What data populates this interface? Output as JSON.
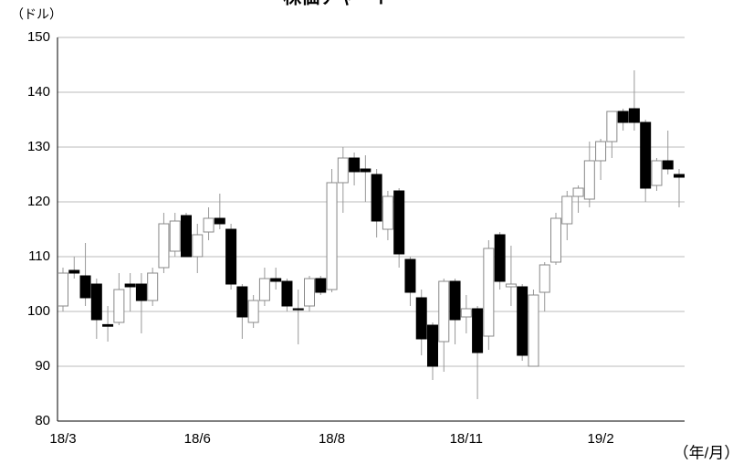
{
  "chart_data": {
    "type": "candlestick",
    "title": "株価チャート",
    "y_label": "（ドル）",
    "x_label": "（年/月）",
    "categories": [
      "18/3",
      null,
      null,
      null,
      null,
      null,
      null,
      null,
      null,
      null,
      null,
      null,
      "18/6",
      null,
      null,
      null,
      null,
      null,
      null,
      null,
      null,
      null,
      null,
      null,
      "18/8",
      null,
      null,
      null,
      null,
      null,
      null,
      null,
      null,
      null,
      null,
      null,
      "18/11",
      null,
      null,
      null,
      null,
      null,
      null,
      null,
      null,
      null,
      null,
      null,
      "19/2",
      null,
      null,
      null,
      null,
      null,
      null,
      null
    ],
    "open": [
      101,
      107.5,
      106.5,
      105,
      97.6,
      98,
      105,
      105,
      102,
      108,
      111,
      117.5,
      110,
      114.5,
      117,
      115,
      104.5,
      98,
      102,
      106,
      105.5,
      100.5,
      101,
      106,
      104,
      123.5,
      128,
      126,
      125,
      115,
      122,
      109.5,
      102.5,
      97.5,
      94.5,
      105.5,
      99,
      100.5,
      95.5,
      114,
      104.5,
      104.5,
      90,
      103.5,
      109,
      116,
      121,
      120.5,
      127.5,
      131,
      136.5,
      137,
      134.5,
      123,
      127.5,
      125
    ],
    "high": [
      108,
      110,
      112.5,
      106,
      101,
      107,
      107,
      107,
      108,
      118,
      118,
      118,
      116,
      119,
      121.5,
      116,
      105,
      103,
      108,
      108,
      106,
      104,
      106.5,
      106.5,
      126,
      130,
      129,
      128.5,
      126,
      122,
      122.5,
      110,
      104,
      98,
      106,
      106,
      103,
      101,
      113,
      114.5,
      112,
      105,
      104,
      109,
      118,
      122,
      123,
      131,
      131.5,
      136.5,
      137,
      144,
      135,
      128,
      133,
      126
    ],
    "low": [
      100,
      106,
      101,
      95,
      94.5,
      97.5,
      100,
      96,
      101,
      107,
      110,
      110,
      107,
      113,
      115,
      104,
      95,
      97,
      101,
      104,
      100,
      94,
      100,
      103,
      103.5,
      118,
      123,
      120,
      113.5,
      113,
      108,
      101,
      92,
      87.5,
      89,
      94,
      96,
      84,
      93,
      104,
      101,
      91,
      90,
      100,
      108.5,
      113,
      118,
      119,
      124,
      128,
      133,
      133,
      120,
      122,
      125,
      119
    ],
    "close": [
      107,
      107,
      102.5,
      98.5,
      97.3,
      104,
      104.5,
      102,
      107,
      116,
      116.5,
      110,
      114,
      117,
      116,
      105,
      99,
      102,
      106,
      105.5,
      101,
      100.3,
      106,
      103.5,
      123.5,
      128,
      125.5,
      125.5,
      116.5,
      121,
      110.5,
      103.5,
      95,
      90,
      105.5,
      98.5,
      100.5,
      92.5,
      111.5,
      105.5,
      105,
      92,
      103,
      108.5,
      117,
      121,
      122.5,
      127.5,
      131,
      136.5,
      134.5,
      134.5,
      122.5,
      127.5,
      126,
      124.5
    ],
    "up_color": "#ffffff",
    "down_color": "#000000",
    "ylim": [
      80,
      150
    ],
    "yticks": [
      80,
      90,
      100,
      110,
      120,
      130,
      140,
      150
    ],
    "grid": true
  }
}
